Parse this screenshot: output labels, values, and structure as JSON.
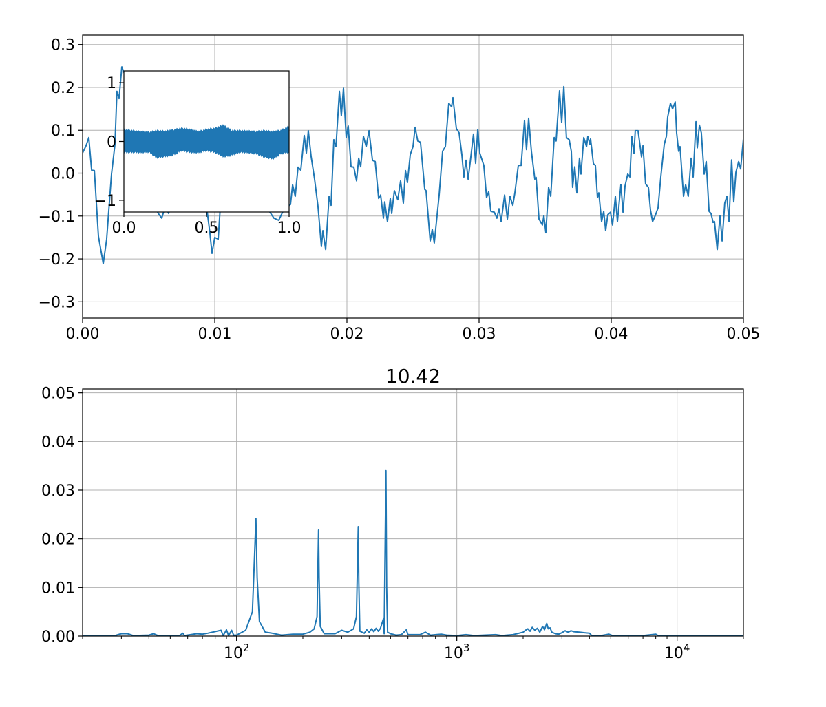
{
  "chart_data": [
    {
      "type": "line",
      "title": "",
      "xlabel": "",
      "ylabel": "",
      "xlim": [
        0,
        0.05
      ],
      "ylim": [
        -0.338,
        0.322
      ],
      "grid": true,
      "color": "#1f77b4",
      "xticks": [
        0,
        0.01,
        0.02,
        0.03,
        0.04,
        0.05
      ],
      "xtick_labels": [
        "0.00",
        "0.01",
        "0.02",
        "0.03",
        "0.04",
        "0.05"
      ],
      "yticks": [
        -0.3,
        -0.2,
        -0.1,
        0,
        0.1,
        0.2,
        0.3
      ],
      "ytick_labels": [
        "−0.3",
        "−0.2",
        "−0.1",
        "0.0",
        "0.1",
        "0.2",
        "0.3"
      ],
      "x": [
        0,
        0.00026,
        0.00047,
        0.00068,
        0.00089,
        0.0012,
        0.00156,
        0.00182,
        0.00219,
        0.00245,
        0.0026,
        0.00276,
        0.00297,
        0.00323,
        0.00365,
        0.00417,
        0.00469,
        0.00521,
        0.00573,
        0.00599,
        0.00625,
        0.00651,
        0.00688,
        0.0074,
        0.00792,
        0.00844,
        0.00896,
        0.00938,
        0.00964,
        0.00979,
        0.01,
        0.01026,
        0.01042,
        0.01094,
        0.01146,
        0.01198,
        0.0125,
        0.01302,
        0.01354,
        0.01417,
        0.01448,
        0.01484,
        0.01521,
        0.01552,
        0.01573,
        0.01589,
        0.01609,
        0.0163,
        0.01651,
        0.01677,
        0.01693,
        0.01708,
        0.01729,
        0.01755,
        0.01781,
        0.01807,
        0.01818,
        0.01839,
        0.01865,
        0.0188,
        0.01901,
        0.01917,
        0.01943,
        0.01958,
        0.01974,
        0.01995,
        0.0201,
        0.02031,
        0.02052,
        0.02073,
        0.02089,
        0.02104,
        0.02125,
        0.02146,
        0.02167,
        0.02193,
        0.02214,
        0.0224,
        0.02255,
        0.02276,
        0.02286,
        0.02307,
        0.02328,
        0.02339,
        0.02359,
        0.02385,
        0.02406,
        0.02427,
        0.02443,
        0.02458,
        0.02479,
        0.025,
        0.02516,
        0.02536,
        0.02557,
        0.02589,
        0.02599,
        0.0263,
        0.02646,
        0.02661,
        0.02698,
        0.02724,
        0.02745,
        0.02771,
        0.02792,
        0.02802,
        0.02828,
        0.02849,
        0.0287,
        0.02885,
        0.02901,
        0.02917,
        0.02932,
        0.02958,
        0.02974,
        0.0299,
        0.03005,
        0.03036,
        0.03057,
        0.03073,
        0.03089,
        0.03115,
        0.03135,
        0.03151,
        0.03167,
        0.03193,
        0.03214,
        0.03234,
        0.03255,
        0.03271,
        0.03297,
        0.03318,
        0.03344,
        0.03359,
        0.03375,
        0.03396,
        0.03422,
        0.03432,
        0.03453,
        0.03479,
        0.0349,
        0.03505,
        0.03526,
        0.03542,
        0.03568,
        0.03583,
        0.03609,
        0.03625,
        0.03641,
        0.03661,
        0.03682,
        0.03698,
        0.03708,
        0.03724,
        0.0374,
        0.0376,
        0.03771,
        0.03792,
        0.03813,
        0.03823,
        0.03839,
        0.03844,
        0.03865,
        0.0388,
        0.03896,
        0.03906,
        0.03927,
        0.03943,
        0.03958,
        0.03974,
        0.03995,
        0.0401,
        0.04031,
        0.04047,
        0.04073,
        0.04089,
        0.04104,
        0.04125,
        0.04141,
        0.04156,
        0.04172,
        0.04182,
        0.04203,
        0.04229,
        0.0424,
        0.0426,
        0.04281,
        0.04297,
        0.04313,
        0.04333,
        0.04354,
        0.04375,
        0.04401,
        0.04417,
        0.04427,
        0.04448,
        0.04464,
        0.04484,
        0.04495,
        0.0451,
        0.04521,
        0.04547,
        0.04563,
        0.04583,
        0.04604,
        0.0462,
        0.04641,
        0.04651,
        0.04667,
        0.04682,
        0.04703,
        0.04719,
        0.0474,
        0.04755,
        0.04771,
        0.04781,
        0.04802,
        0.04823,
        0.04839,
        0.04859,
        0.04875,
        0.04891,
        0.04911,
        0.04927,
        0.04943,
        0.04964,
        0.04979,
        0.05
      ],
      "y": [
        0.047,
        0.064,
        0.083,
        0.007,
        0.006,
        -0.147,
        -0.211,
        -0.155,
        -0.002,
        0.067,
        0.191,
        0.174,
        0.248,
        0.227,
        0.163,
        0.083,
        0.002,
        -0.062,
        -0.094,
        -0.105,
        -0.078,
        -0.094,
        -0.046,
        0.018,
        0.083,
        0.067,
        -0.014,
        -0.078,
        -0.142,
        -0.187,
        -0.15,
        -0.154,
        -0.078,
        0.002,
        0.067,
        0.099,
        0.083,
        0.018,
        -0.046,
        -0.091,
        -0.105,
        -0.11,
        -0.086,
        -0.078,
        -0.073,
        -0.027,
        -0.054,
        0.014,
        0.007,
        0.088,
        0.047,
        0.099,
        0.039,
        -0.014,
        -0.078,
        -0.171,
        -0.134,
        -0.178,
        -0.054,
        -0.075,
        0.078,
        0.062,
        0.191,
        0.134,
        0.198,
        0.083,
        0.11,
        0.015,
        0.014,
        -0.018,
        0.035,
        0.015,
        0.086,
        0.062,
        0.099,
        0.03,
        0.027,
        -0.059,
        -0.051,
        -0.105,
        -0.067,
        -0.113,
        -0.059,
        -0.094,
        -0.041,
        -0.062,
        -0.018,
        -0.07,
        0.006,
        -0.022,
        0.043,
        0.062,
        0.107,
        0.075,
        0.072,
        -0.038,
        -0.041,
        -0.158,
        -0.131,
        -0.163,
        -0.051,
        0.051,
        0.062,
        0.163,
        0.155,
        0.176,
        0.104,
        0.094,
        0.043,
        -0.009,
        0.03,
        -0.014,
        0.023,
        0.091,
        0.023,
        0.102,
        0.047,
        0.018,
        -0.057,
        -0.043,
        -0.089,
        -0.091,
        -0.105,
        -0.083,
        -0.113,
        -0.051,
        -0.107,
        -0.054,
        -0.075,
        -0.046,
        0.018,
        0.018,
        0.123,
        0.055,
        0.128,
        0.051,
        -0.014,
        -0.01,
        -0.107,
        -0.121,
        -0.099,
        -0.139,
        -0.033,
        -0.054,
        0.083,
        0.075,
        0.192,
        0.118,
        0.202,
        0.083,
        0.078,
        0.051,
        -0.033,
        0.015,
        -0.046,
        0.035,
        -0.002,
        0.083,
        0.062,
        0.086,
        0.067,
        0.08,
        0.022,
        0.018,
        -0.057,
        -0.046,
        -0.113,
        -0.089,
        -0.134,
        -0.097,
        -0.091,
        -0.121,
        -0.054,
        -0.113,
        -0.027,
        -0.091,
        -0.03,
        -0.002,
        -0.009,
        0.086,
        0.046,
        0.099,
        0.099,
        0.038,
        0.064,
        -0.025,
        -0.033,
        -0.086,
        -0.113,
        -0.099,
        -0.081,
        -0.009,
        0.067,
        0.086,
        0.131,
        0.163,
        0.15,
        0.166,
        0.094,
        0.051,
        0.062,
        -0.054,
        -0.027,
        -0.054,
        0.035,
        -0.009,
        0.12,
        0.059,
        0.112,
        0.094,
        -0.002,
        0.027,
        -0.089,
        -0.094,
        -0.115,
        -0.113,
        -0.178,
        -0.099,
        -0.158,
        -0.07,
        -0.054,
        -0.113,
        0.031,
        -0.067,
        0.002,
        0.027,
        0.01,
        0.08
      ]
    },
    {
      "type": "area",
      "inset": true,
      "title": "",
      "xlim": [
        0,
        1
      ],
      "ylim": [
        -1.2,
        1.2
      ],
      "grid": false,
      "color": "#1f77b4",
      "xticks": [
        0,
        0.5,
        1
      ],
      "xtick_labels": [
        "0.0",
        "0.5",
        "1.0"
      ],
      "yticks": [
        -1,
        0,
        1
      ],
      "ytick_labels": [
        "−1",
        "0",
        "1"
      ],
      "x": [
        0,
        0.05,
        0.1,
        0.15,
        0.2,
        0.25,
        0.3,
        0.35,
        0.4,
        0.45,
        0.5,
        0.55,
        0.6,
        0.65,
        0.7,
        0.75,
        0.8,
        0.85,
        0.9,
        0.95,
        1.0
      ],
      "upper": [
        0.22,
        0.2,
        0.18,
        0.17,
        0.2,
        0.19,
        0.21,
        0.24,
        0.22,
        0.18,
        0.22,
        0.24,
        0.29,
        0.2,
        0.2,
        0.19,
        0.18,
        0.2,
        0.18,
        0.2,
        0.27
      ],
      "lower": [
        -0.2,
        -0.2,
        -0.2,
        -0.19,
        -0.29,
        -0.27,
        -0.24,
        -0.17,
        -0.2,
        -0.2,
        -0.17,
        -0.2,
        -0.27,
        -0.25,
        -0.2,
        -0.2,
        -0.22,
        -0.28,
        -0.31,
        -0.22,
        -0.2
      ]
    },
    {
      "type": "line",
      "title": "10.42",
      "xlabel": "",
      "ylabel": "",
      "xscale": "log",
      "xlim": [
        20,
        20000
      ],
      "ylim": [
        0,
        0.0508
      ],
      "grid": true,
      "color": "#1f77b4",
      "xticks": [
        100,
        1000,
        10000
      ],
      "xtick_labels": [
        {
          "base": "10",
          "exp": "2"
        },
        {
          "base": "10",
          "exp": "3"
        },
        {
          "base": "10",
          "exp": "4"
        }
      ],
      "yticks": [
        0,
        0.01,
        0.02,
        0.03,
        0.04,
        0.05
      ],
      "ytick_labels": [
        "0.00",
        "0.01",
        "0.02",
        "0.03",
        "0.04",
        "0.05"
      ],
      "x": [
        20,
        28,
        30,
        32,
        34,
        40,
        42,
        44,
        55,
        57,
        58,
        66,
        70,
        74,
        85,
        87,
        90,
        92,
        95,
        97,
        100,
        110,
        118,
        121,
        122.4,
        124,
        127,
        135,
        145,
        160,
        180,
        200,
        215,
        225,
        232,
        235.6,
        237,
        240,
        250,
        280,
        300,
        320,
        340,
        350,
        357,
        359,
        363,
        380,
        390,
        400,
        410,
        420,
        430,
        440,
        450,
        465,
        468,
        476.8,
        480,
        485,
        500,
        530,
        560,
        590,
        600,
        680,
        720,
        760,
        850,
        900,
        1000,
        1100,
        1200,
        1500,
        1600,
        1800,
        2000,
        2050,
        2100,
        2150,
        2200,
        2260,
        2320,
        2380,
        2450,
        2500,
        2560,
        2600,
        2650,
        2700,
        2800,
        2900,
        3000,
        3100,
        3200,
        3300,
        3400,
        3600,
        3800,
        4000,
        4100,
        4500,
        4900,
        5100,
        7000,
        8000,
        8200,
        20000
      ],
      "y": [
        0.0001,
        0.0001,
        0.0005,
        0.0005,
        0.0001,
        0.0002,
        0.0005,
        0.0001,
        0.0001,
        0.0006,
        0.0001,
        0.0005,
        0.0004,
        0.0006,
        0.0012,
        0.0001,
        0.0013,
        0.0001,
        0.0012,
        0.0002,
        0.0002,
        0.0012,
        0.005,
        0.018,
        0.0242,
        0.012,
        0.003,
        0.0008,
        0.0006,
        0.0002,
        0.0004,
        0.0004,
        0.0008,
        0.0015,
        0.004,
        0.0218,
        0.012,
        0.002,
        0.0005,
        0.0005,
        0.0012,
        0.0008,
        0.0015,
        0.004,
        0.0225,
        0.011,
        0.001,
        0.0006,
        0.0013,
        0.0008,
        0.0015,
        0.0009,
        0.0016,
        0.001,
        0.0016,
        0.0037,
        0.0005,
        0.034,
        0.0102,
        0.0008,
        0.0005,
        0.0002,
        0.0003,
        0.0013,
        0.0003,
        0.0003,
        0.0008,
        0.0002,
        0.0004,
        0.0002,
        0.0001,
        0.0003,
        0.0001,
        0.0003,
        0.0001,
        0.0003,
        0.0008,
        0.0012,
        0.0015,
        0.001,
        0.0018,
        0.0012,
        0.0016,
        0.0008,
        0.002,
        0.0013,
        0.0026,
        0.0015,
        0.0017,
        0.0008,
        0.0005,
        0.0004,
        0.0007,
        0.0011,
        0.0008,
        0.0011,
        0.0009,
        0.0008,
        0.0007,
        0.0006,
        0.0001,
        0.0001,
        0.0004,
        0.0001,
        0.0001,
        0.0004,
        0.0001,
        0
      ]
    }
  ]
}
